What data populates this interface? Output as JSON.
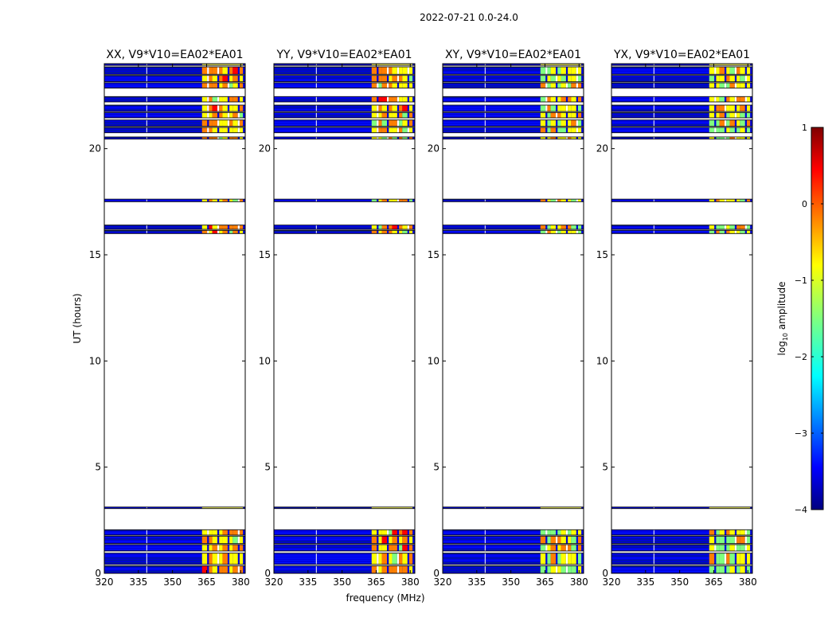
{
  "figure": {
    "title": "2022-07-21 0.0-24.0"
  },
  "chart_data": {
    "type": "heatmap",
    "xlabel": "frequency (MHz)",
    "ylabel": "UT (hours)",
    "xlim": [
      320,
      382
    ],
    "ylim": [
      0,
      24
    ],
    "xticks": [
      320,
      335,
      350,
      365,
      380
    ],
    "yticks": [
      0,
      5,
      10,
      15,
      20
    ],
    "panels": [
      {
        "title": "XX, V9*V10=EA02*EA01",
        "pol": "XX"
      },
      {
        "title": "YY, V9*V10=EA02*EA01",
        "pol": "YY"
      },
      {
        "title": "XY, V9*V10=EA02*EA01",
        "pol": "XY"
      },
      {
        "title": "YX, V9*V10=EA02*EA01",
        "pol": "YX"
      }
    ],
    "time_bands_hours": [
      [
        0.0,
        0.35
      ],
      [
        0.42,
        0.95
      ],
      [
        1.05,
        1.35
      ],
      [
        1.4,
        1.75
      ],
      [
        1.8,
        2.05
      ],
      [
        3.05,
        3.12
      ],
      [
        16.0,
        16.15
      ],
      [
        16.2,
        16.4
      ],
      [
        17.5,
        17.62
      ],
      [
        20.45,
        20.55
      ],
      [
        20.75,
        21.0
      ],
      [
        21.05,
        21.35
      ],
      [
        21.45,
        21.7
      ],
      [
        21.75,
        22.05
      ],
      [
        22.2,
        22.45
      ],
      [
        22.85,
        23.1
      ],
      [
        23.15,
        23.45
      ],
      [
        23.5,
        23.85
      ],
      [
        23.92,
        24.0
      ]
    ],
    "bright_freq_range_mhz": [
      363,
      381
    ],
    "colorbar": {
      "label": "log10 amplitude",
      "range": [
        -4,
        1
      ],
      "ticks": [
        1,
        0,
        -1,
        -2,
        -3,
        -4
      ],
      "colormap": "jet",
      "colors": [
        "#00007f",
        "#0000ff",
        "#007fff",
        "#00ffff",
        "#7fff7f",
        "#ffff00",
        "#ff7f00",
        "#ff0000",
        "#7f0000"
      ]
    }
  }
}
